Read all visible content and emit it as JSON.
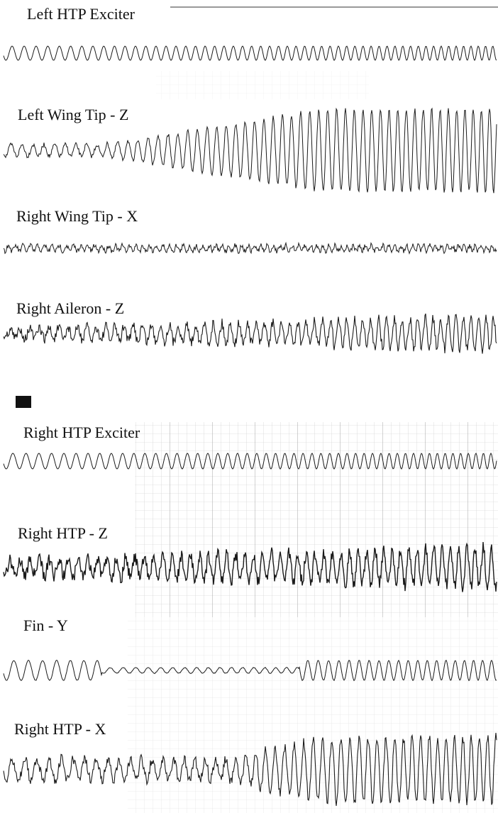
{
  "traces": [
    {
      "label": "Left HTP Exciter"
    },
    {
      "label": "Left Wing Tip - Z"
    },
    {
      "label": "Right Wing Tip - X"
    },
    {
      "label": "Right Aileron - Z"
    },
    {
      "label": "Right HTP Exciter"
    },
    {
      "label": "Right HTP - Z"
    },
    {
      "label": "Fin - Y"
    },
    {
      "label": "Right HTP - X"
    }
  ]
}
